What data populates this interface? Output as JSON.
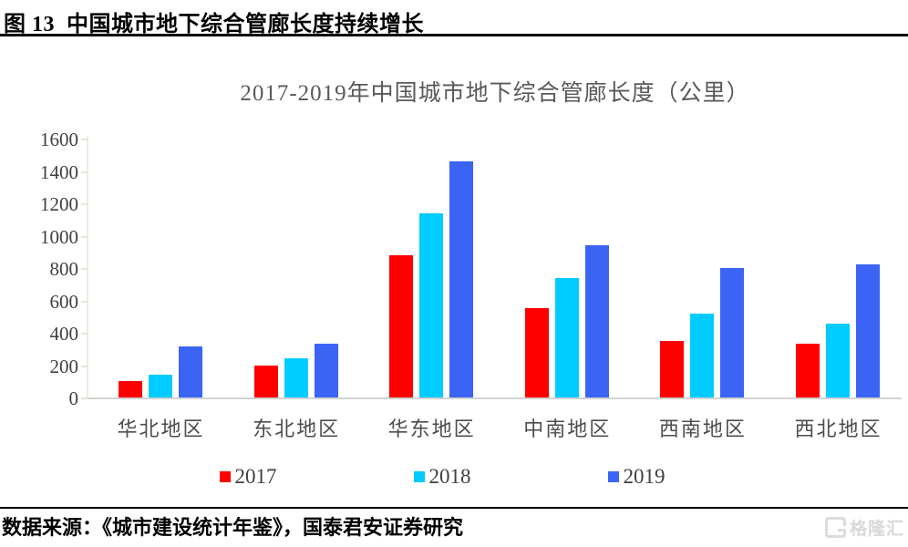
{
  "figure": {
    "title": "图 13  中国城市地下综合管廊长度持续增长",
    "source": "数据来源：《城市建设统计年鉴》，国泰君安证券研究",
    "watermark": "格隆汇"
  },
  "chart_data": {
    "type": "bar",
    "title": "2017-2019年中国城市地下综合管廊长度（公里）",
    "categories": [
      "华北地区",
      "东北地区",
      "华东地区",
      "中南地区",
      "西南地区",
      "西北地区"
    ],
    "series": [
      {
        "name": "2017",
        "color": "#FF0000",
        "values": [
          100,
          195,
          880,
          555,
          350,
          330
        ]
      },
      {
        "name": "2018",
        "color": "#00CCFF",
        "values": [
          140,
          245,
          1140,
          740,
          520,
          455
        ]
      },
      {
        "name": "2019",
        "color": "#3B64F5",
        "values": [
          315,
          330,
          1460,
          940,
          800,
          820
        ]
      }
    ],
    "ylabel": "",
    "xlabel": "",
    "ylim": [
      0,
      1600
    ],
    "ytick_step": 200,
    "grid": false,
    "legend_position": "bottom"
  }
}
